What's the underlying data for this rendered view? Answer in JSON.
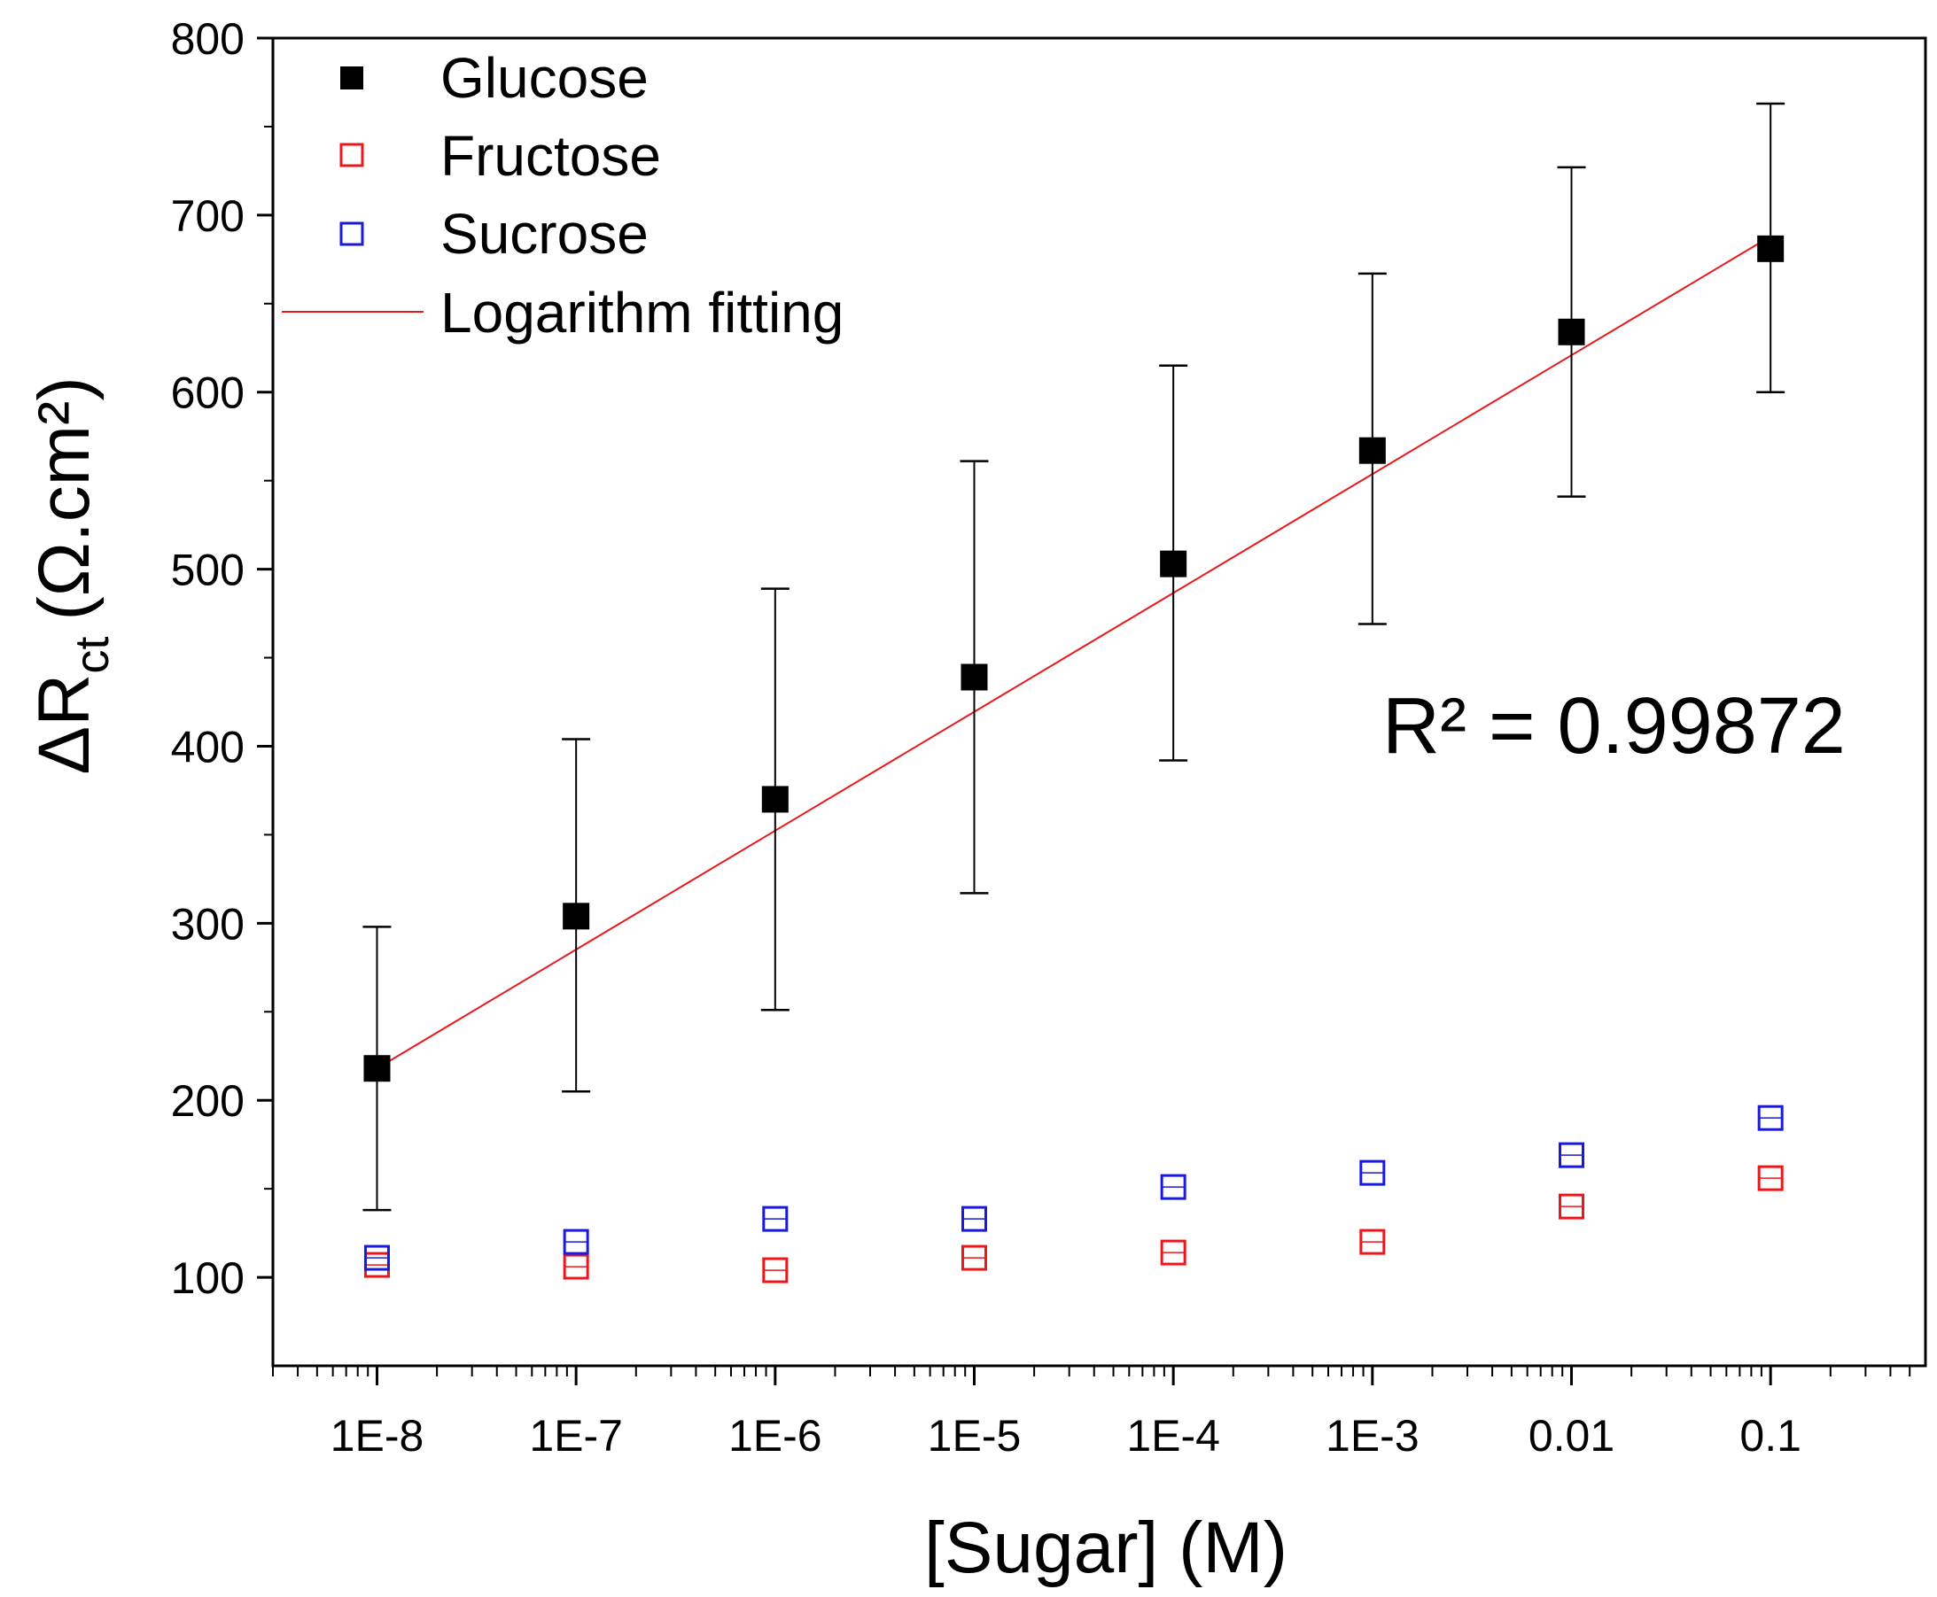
{
  "chart_data": {
    "type": "scatter",
    "title": "",
    "xlabel": "[Sugar] (M)",
    "ylabel": {
      "main": "ΔR",
      "subscript": "ct",
      "units": "(Ω.cm²)"
    },
    "xscale": "log",
    "xlim": [
      3e-09,
      0.6
    ],
    "ylim": [
      50,
      800
    ],
    "x": [
      1e-08,
      1e-07,
      1e-06,
      1e-05,
      0.0001,
      0.001,
      0.01,
      0.1
    ],
    "xtick_labels": [
      "1E-8",
      "1E-7",
      "1E-6",
      "1E-5",
      "1E-4",
      "1E-3",
      "0.01",
      "0.1"
    ],
    "ytick_values": [
      100,
      200,
      300,
      400,
      500,
      600,
      700,
      800
    ],
    "ytick_labels": [
      "100",
      "200",
      "300",
      "400",
      "500",
      "600",
      "700",
      "800"
    ],
    "series": [
      {
        "name": "Glucose",
        "marker": "filled-square",
        "color": "#000000",
        "values": [
          218,
          304,
          370,
          439,
          503,
          567,
          634,
          681
        ],
        "error_low": [
          138,
          205,
          251,
          317,
          392,
          469,
          541,
          600
        ],
        "error_high": [
          298,
          404,
          489,
          561,
          615,
          667,
          727,
          763
        ]
      },
      {
        "name": "Fructose",
        "marker": "open-square",
        "color": "#e8191c",
        "values": [
          107,
          106,
          104,
          111,
          114,
          120,
          140,
          156
        ]
      },
      {
        "name": "Sucrose",
        "marker": "open-square",
        "color": "#1a1ad8",
        "values": [
          111,
          120,
          133,
          133,
          151,
          159,
          169,
          190
        ]
      }
    ],
    "fit": {
      "name": "Logarithm fitting",
      "color": "#e8191c",
      "x_range": [
        1e-08,
        0.1
      ],
      "y_range": [
        218,
        688
      ]
    },
    "legend": {
      "position": "top-left",
      "entries": [
        "Glucose",
        "Fructose",
        "Sucrose",
        "Logarithm fitting"
      ]
    },
    "annotation": "R² = 0.99872",
    "grid": false
  }
}
